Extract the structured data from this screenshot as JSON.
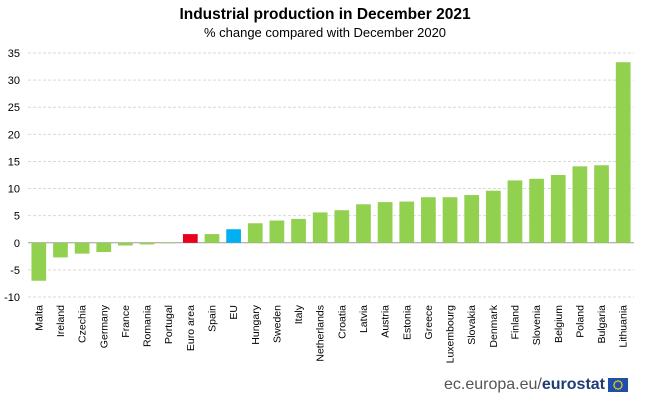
{
  "chart_data": {
    "type": "bar",
    "title": "Industrial production in December 2021",
    "subtitle": "% change compared with December 2020",
    "xlabel": "",
    "ylabel": "",
    "ylim": [
      -10,
      35
    ],
    "yticks": [
      -10,
      -5,
      0,
      5,
      10,
      15,
      20,
      25,
      30,
      35
    ],
    "grid": true,
    "categories": [
      "Malta",
      "Ireland",
      "Czechia",
      "Germany",
      "France",
      "Romania",
      "Portugal",
      "Euro area",
      "Spain",
      "EU",
      "Hungary",
      "Sweden",
      "Italy",
      "Netherlands",
      "Croatia",
      "Latvia",
      "Austria",
      "Estonia",
      "Greece",
      "Luxembourg",
      "Slovakia",
      "Denmark",
      "Finland",
      "Slovenia",
      "Belgium",
      "Poland",
      "Bulgaria",
      "Lithuania"
    ],
    "values": [
      -7.0,
      -2.7,
      -2.0,
      -1.7,
      -0.5,
      -0.3,
      -0.1,
      1.6,
      1.6,
      2.5,
      3.6,
      4.1,
      4.4,
      5.6,
      6.0,
      7.1,
      7.5,
      7.6,
      8.4,
      8.4,
      8.8,
      9.6,
      11.5,
      11.8,
      12.5,
      14.1,
      14.3,
      33.3
    ],
    "colors": {
      "default": "#92d050",
      "Euro area": "#e8001c",
      "EU": "#00b0f0"
    }
  },
  "footer": {
    "domain": "ec.europa.eu/",
    "brand": "eurostat"
  }
}
